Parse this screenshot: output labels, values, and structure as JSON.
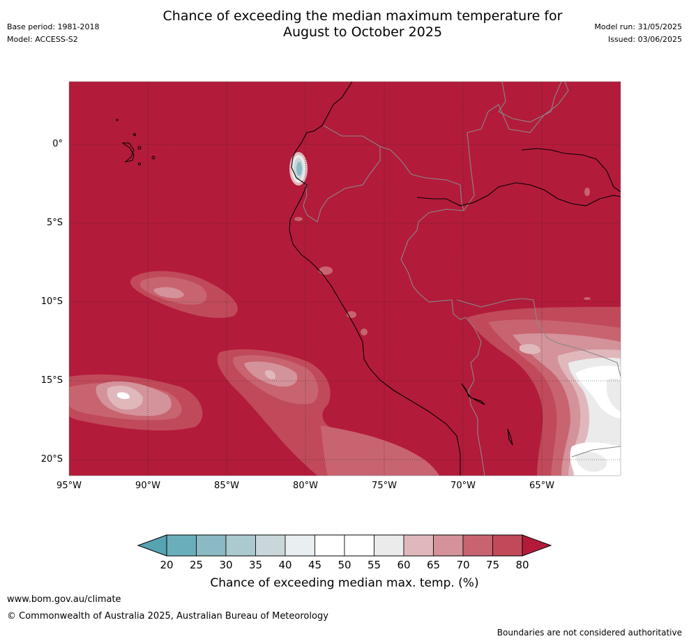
{
  "header": {
    "title_line1": "Chance of exceeding the median maximum temperature for",
    "title_line2": "August to October 2025",
    "base_period": "Base period: 1981-2018",
    "model": "Model: ACCESS-S2",
    "model_run": "Model run: 31/05/2025",
    "issued": "Issued: 03/06/2025"
  },
  "map": {
    "lat_labels": [
      "0°",
      "5°S",
      "10°S",
      "15°S",
      "20°S"
    ],
    "lon_labels": [
      "95°W",
      "90°W",
      "85°W",
      "80°W",
      "75°W",
      "70°W",
      "65°W"
    ],
    "dominant_category": ">80%",
    "colors": {
      "ocean_land_high": "#b31b3a",
      "c75_80": "#c04a59",
      "c70_75": "#c8646f",
      "c65_70": "#d4929a",
      "c60_65": "#e0b8bc",
      "c55_60": "#ebebeb",
      "c45_55": "#ffffff",
      "low": "#9ec0c8"
    }
  },
  "colorbar": {
    "ticks": [
      "20",
      "25",
      "30",
      "35",
      "40",
      "45",
      "50",
      "55",
      "60",
      "65",
      "70",
      "75",
      "80"
    ],
    "colors": [
      "#6aaebb",
      "#8bb9c4",
      "#abc9cf",
      "#c9d7da",
      "#e9eef0",
      "#ffffff",
      "#ffffff",
      "#ebebeb",
      "#e0b8bc",
      "#d4929a",
      "#c8646f",
      "#c04a59"
    ],
    "under_color": "#56a3b2",
    "over_color": "#b31b3a",
    "label": "Chance of exceeding median max. temp. (%)"
  },
  "footer": {
    "website": "www.bom.gov.au/climate",
    "copyright": "© Commonwealth of Australia 2025, Australian Bureau of Meteorology",
    "disclaimer": "Boundaries are not considered authoritative"
  }
}
